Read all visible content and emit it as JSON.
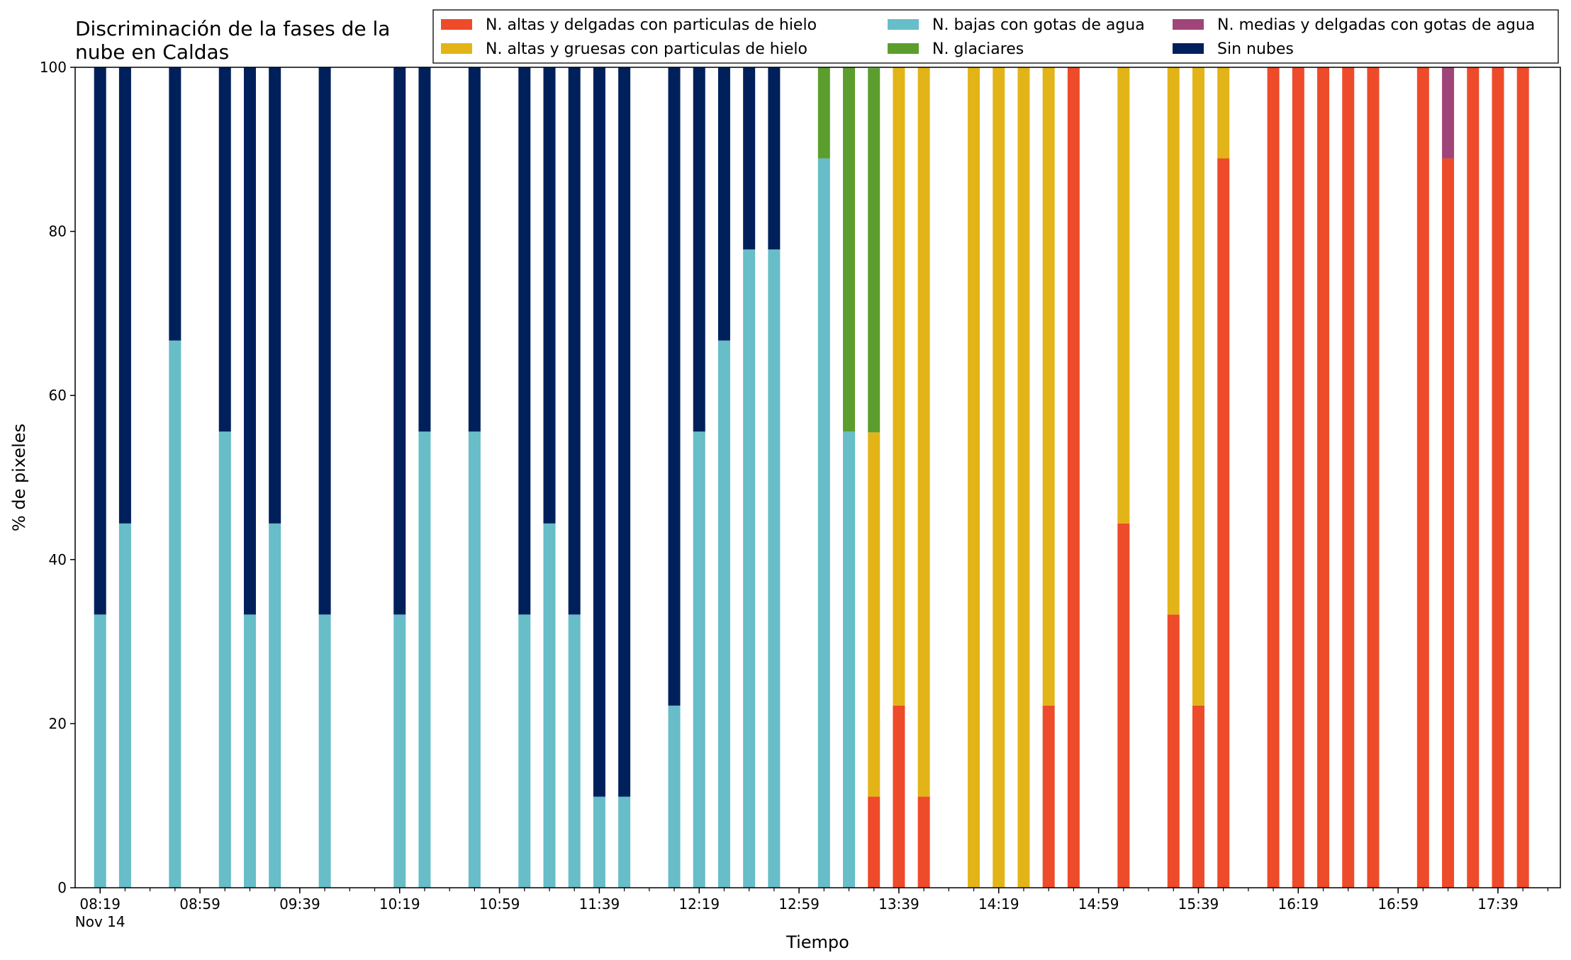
{
  "chart_data": {
    "type": "bar",
    "stacked": true,
    "title_lines": [
      "Discriminación de la fases de la",
      "nube en Caldas"
    ],
    "xlabel": "Tiempo",
    "ylabel": "% de pixeles",
    "ylim": [
      0,
      100
    ],
    "y_ticks": [
      0,
      20,
      40,
      60,
      80,
      100
    ],
    "x_tick_labels": [
      "08:19",
      "08:59",
      "09:39",
      "10:19",
      "10:59",
      "11:39",
      "12:19",
      "12:59",
      "13:39",
      "14:19",
      "14:59",
      "15:39",
      "16:19",
      "16:59",
      "17:39"
    ],
    "x_tick_sublabel": "Nov 14",
    "grid": false,
    "legend_position": "top-right",
    "legend": [
      {
        "key": "thin_ice",
        "name": "N. altas y delgadas con particulas de hielo",
        "color": "#ee4b2b"
      },
      {
        "key": "thick_ice",
        "name": "N. altas y gruesas con particulas de hielo",
        "color": "#e3b418"
      },
      {
        "key": "low_water",
        "name": "N. bajas con gotas de agua",
        "color": "#67bdc8"
      },
      {
        "key": "glacial",
        "name": "N. glaciares",
        "color": "#5c9e2e"
      },
      {
        "key": "mid_water",
        "name": "N. medias y delgadas con gotas de agua",
        "color": "#a0457a"
      },
      {
        "key": "clear",
        "name": "Sin nubes",
        "color": "#00205b"
      }
    ],
    "stack_order": [
      "low_water",
      "thin_ice",
      "mid_water",
      "thick_ice",
      "glacial",
      "clear"
    ],
    "bars": [
      {
        "time": "08:19",
        "low_water": 33.3,
        "clear": 66.7
      },
      {
        "time": "08:29",
        "low_water": 44.4,
        "clear": 55.6
      },
      {
        "time": "08:49",
        "low_water": 66.7,
        "clear": 33.3
      },
      {
        "time": "09:09",
        "low_water": 55.6,
        "clear": 44.4
      },
      {
        "time": "09:19",
        "low_water": 33.3,
        "clear": 66.7
      },
      {
        "time": "09:29",
        "low_water": 44.4,
        "clear": 55.6
      },
      {
        "time": "09:49",
        "low_water": 33.3,
        "clear": 66.7
      },
      {
        "time": "10:19",
        "low_water": 33.3,
        "clear": 66.7
      },
      {
        "time": "10:29",
        "low_water": 55.6,
        "clear": 44.4
      },
      {
        "time": "10:49",
        "low_water": 55.6,
        "clear": 44.4
      },
      {
        "time": "11:09",
        "low_water": 33.3,
        "clear": 66.7
      },
      {
        "time": "11:19",
        "low_water": 44.4,
        "clear": 55.6
      },
      {
        "time": "11:29",
        "low_water": 33.3,
        "clear": 66.7
      },
      {
        "time": "11:39",
        "low_water": 11.1,
        "clear": 88.9
      },
      {
        "time": "11:49",
        "low_water": 11.1,
        "clear": 88.9
      },
      {
        "time": "12:09",
        "low_water": 22.2,
        "clear": 77.8
      },
      {
        "time": "12:19",
        "low_water": 55.6,
        "clear": 44.4
      },
      {
        "time": "12:29",
        "low_water": 66.7,
        "clear": 33.3
      },
      {
        "time": "12:39",
        "low_water": 77.8,
        "clear": 22.2
      },
      {
        "time": "12:49",
        "low_water": 77.8,
        "clear": 22.2
      },
      {
        "time": "13:09",
        "low_water": 88.9,
        "glacial": 11.1
      },
      {
        "time": "13:19",
        "low_water": 55.6,
        "glacial": 44.4
      },
      {
        "time": "13:29",
        "thin_ice": 11.1,
        "thick_ice": 44.4,
        "glacial": 44.4
      },
      {
        "time": "13:39",
        "thin_ice": 22.2,
        "thick_ice": 77.8
      },
      {
        "time": "13:49",
        "thin_ice": 11.1,
        "thick_ice": 88.9
      },
      {
        "time": "14:09",
        "thick_ice": 100
      },
      {
        "time": "14:19",
        "thick_ice": 100
      },
      {
        "time": "14:29",
        "thick_ice": 100
      },
      {
        "time": "14:39",
        "thin_ice": 22.2,
        "thick_ice": 77.8
      },
      {
        "time": "14:49",
        "thin_ice": 100
      },
      {
        "time": "15:09",
        "thin_ice": 44.4,
        "thick_ice": 55.6
      },
      {
        "time": "15:29",
        "thin_ice": 33.3,
        "thick_ice": 66.7
      },
      {
        "time": "15:39",
        "thin_ice": 22.2,
        "thick_ice": 77.8
      },
      {
        "time": "15:49",
        "thin_ice": 88.9,
        "thick_ice": 11.1
      },
      {
        "time": "16:09",
        "thin_ice": 100
      },
      {
        "time": "16:19",
        "thin_ice": 100
      },
      {
        "time": "16:29",
        "thin_ice": 100
      },
      {
        "time": "16:39",
        "thin_ice": 100
      },
      {
        "time": "16:49",
        "thin_ice": 100
      },
      {
        "time": "17:09",
        "thin_ice": 100
      },
      {
        "time": "17:19",
        "thin_ice": 88.9,
        "mid_water": 11.1
      },
      {
        "time": "17:29",
        "thin_ice": 100
      },
      {
        "time": "17:39",
        "thin_ice": 100
      },
      {
        "time": "17:49",
        "thin_ice": 100
      }
    ]
  }
}
